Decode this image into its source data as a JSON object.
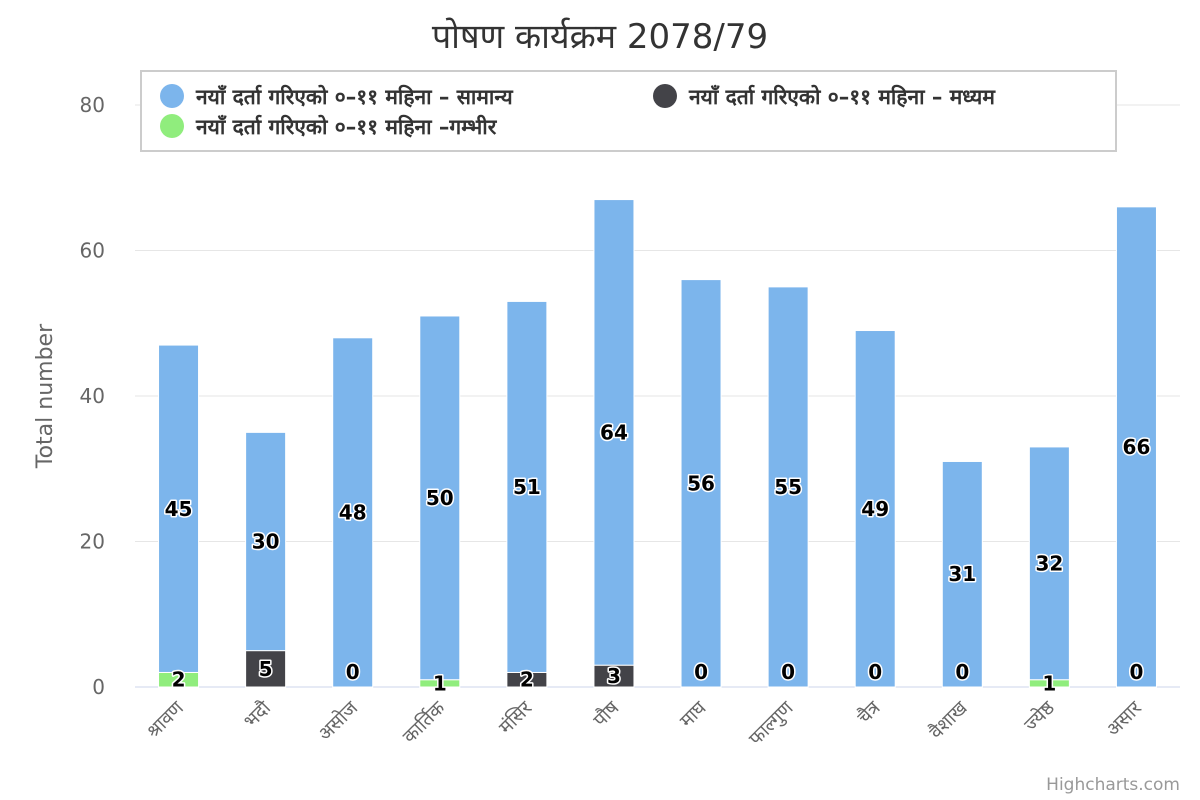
{
  "chart_data": {
    "type": "bar",
    "stacked": true,
    "title": "पोषण कार्यक्रम 2078/79",
    "ylabel": "Total number",
    "xlabel": "",
    "ylim": [
      0,
      80
    ],
    "yticks": [
      0,
      20,
      40,
      60,
      80
    ],
    "grid": true,
    "legend_position": "top",
    "categories": [
      "श्रावण",
      "भदौ",
      "असोज",
      "कार्तिक",
      "मंसिर",
      "पौष",
      "माघ",
      "फाल्गुण",
      "चैत्र",
      "वैशाख",
      "ज्येष्ठ",
      "असार"
    ],
    "series": [
      {
        "name": "नयाँ दर्ता गरिएको ०–११ महिना – सामान्य",
        "color": "#7cb5ec",
        "values": [
          45,
          30,
          48,
          50,
          51,
          64,
          56,
          55,
          49,
          31,
          32,
          66
        ]
      },
      {
        "name": "नयाँ दर्ता गरिएको ०–११ महिना – मध्यम",
        "color": "#434348",
        "values": [
          0,
          5,
          0,
          0,
          2,
          3,
          0,
          0,
          0,
          0,
          0,
          0
        ]
      },
      {
        "name": "नयाँ दर्ता गरिएको ०–११ महिना –गम्भीर",
        "color": "#90ed7d",
        "values": [
          2,
          0,
          0,
          1,
          0,
          0,
          0,
          0,
          0,
          0,
          1,
          0
        ]
      }
    ]
  },
  "credits": "Highcharts.com"
}
